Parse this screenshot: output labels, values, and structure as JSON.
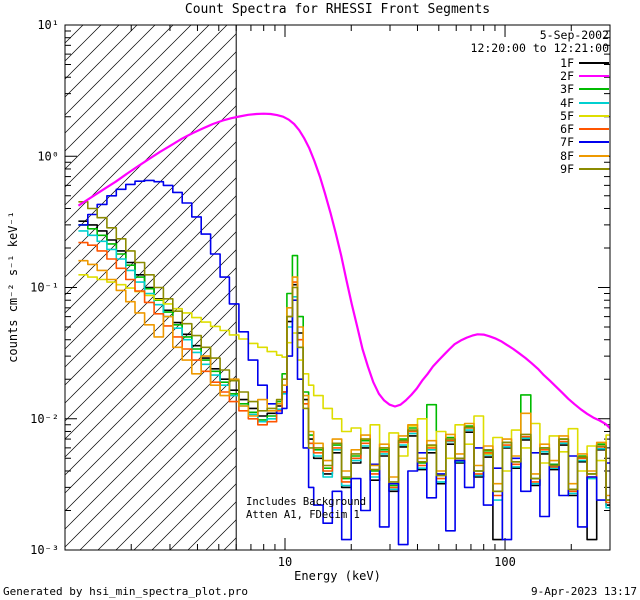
{
  "annotations": {
    "date": "5-Sep-2002",
    "time_range": "12:20:00 to 12:21:00",
    "note_line1": "Includes Background",
    "note_line2": "Atten A1, FDecim 1",
    "generated_by": "Generated by hsi_min_spectra_plot.pro",
    "generated_on": "9-Apr-2023 13:17"
  },
  "chart_data": {
    "type": "line",
    "title": "Count Spectra for RHESSI Front Segments",
    "xlabel": "Energy (keV)",
    "ylabel": "counts cm⁻² s⁻¹ keV⁻¹",
    "xscale": "log",
    "yscale": "log",
    "xlim": [
      1,
      300
    ],
    "ylim": [
      0.001,
      10
    ],
    "attenuator_kev": 6,
    "hatched_region_kev": [
      1,
      6
    ],
    "x_ticks": [
      {
        "v": 10,
        "label": "10"
      },
      {
        "v": 100,
        "label": "100"
      }
    ],
    "y_ticks": [
      {
        "v": 10,
        "label": "10¹"
      },
      {
        "v": 1,
        "label": "10⁰"
      },
      {
        "v": 0.1,
        "label": "10⁻¹"
      },
      {
        "v": 0.01,
        "label": "10⁻²"
      },
      {
        "v": 0.001,
        "label": "10⁻³"
      }
    ],
    "energies_kev": [
      1.15,
      1.27,
      1.4,
      1.55,
      1.71,
      1.89,
      2.08,
      2.3,
      2.54,
      2.8,
      3.09,
      3.41,
      3.77,
      4.16,
      4.59,
      5.07,
      5.59,
      6.17,
      6.81,
      7.52,
      8.3,
      9.16,
      9.7,
      10.2,
      10.8,
      11.4,
      12.1,
      12.8,
      13.5,
      14.9,
      16.4,
      18.1,
      20.0,
      22.1,
      24.4,
      26.9,
      29.7,
      32.8,
      36.2,
      40.0,
      44.1,
      48.7,
      53.8,
      59.3,
      65.5,
      72.3,
      79.8,
      88.1,
      97.2,
      107,
      118,
      131,
      144,
      159,
      176,
      194,
      214,
      236,
      261,
      288,
      318,
      351
    ],
    "series": [
      {
        "name": "1F",
        "color": "#000000",
        "values": [
          0.32,
          0.3,
          0.27,
          0.23,
          0.19,
          0.155,
          0.125,
          0.1,
          0.082,
          0.067,
          0.054,
          0.044,
          0.036,
          0.029,
          0.024,
          0.02,
          0.0165,
          0.014,
          0.012,
          0.0105,
          0.011,
          0.0125,
          0.016,
          0.055,
          0.105,
          0.045,
          0.014,
          0.007,
          0.005,
          0.0038,
          0.0055,
          0.003,
          0.0046,
          0.006,
          0.0034,
          0.0052,
          0.0028,
          0.0061,
          0.0074,
          0.0041,
          0.0055,
          0.0032,
          0.0064,
          0.0046,
          0.0079,
          0.0036,
          0.0051,
          0.0012,
          0.006,
          0.0042,
          0.0069,
          0.0031,
          0.0054,
          0.0041,
          0.0063,
          0.0026,
          0.0047,
          0.0012,
          0.0058,
          0.0022,
          0.0039,
          0.0031
        ]
      },
      {
        "name": "2F",
        "color": "#ff00ff",
        "points": [
          [
            1.15,
            0.42
          ],
          [
            1.3,
            0.48
          ],
          [
            1.5,
            0.56
          ],
          [
            1.7,
            0.64
          ],
          [
            1.9,
            0.73
          ],
          [
            2.1,
            0.82
          ],
          [
            2.4,
            0.95
          ],
          [
            2.7,
            1.08
          ],
          [
            3.0,
            1.2
          ],
          [
            3.4,
            1.36
          ],
          [
            3.8,
            1.5
          ],
          [
            4.2,
            1.62
          ],
          [
            4.7,
            1.76
          ],
          [
            5.2,
            1.87
          ],
          [
            5.7,
            1.95
          ],
          [
            6.2,
            2.01
          ],
          [
            6.8,
            2.07
          ],
          [
            7.4,
            2.1
          ],
          [
            8.0,
            2.11
          ],
          [
            8.6,
            2.1
          ],
          [
            9.2,
            2.06
          ],
          [
            9.8,
            2.0
          ],
          [
            10.4,
            1.9
          ],
          [
            11.0,
            1.76
          ],
          [
            11.6,
            1.58
          ],
          [
            12.2,
            1.38
          ],
          [
            12.9,
            1.15
          ],
          [
            13.6,
            0.92
          ],
          [
            14.4,
            0.7
          ],
          [
            15.2,
            0.52
          ],
          [
            16.1,
            0.37
          ],
          [
            17.0,
            0.26
          ],
          [
            18.0,
            0.175
          ],
          [
            19.0,
            0.115
          ],
          [
            20.1,
            0.075
          ],
          [
            21.3,
            0.05
          ],
          [
            22.5,
            0.034
          ],
          [
            23.8,
            0.025
          ],
          [
            25.2,
            0.019
          ],
          [
            26.7,
            0.0155
          ],
          [
            28.2,
            0.0138
          ],
          [
            29.9,
            0.0128
          ],
          [
            31.6,
            0.0124
          ],
          [
            33.5,
            0.0128
          ],
          [
            35.4,
            0.0138
          ],
          [
            37.5,
            0.0152
          ],
          [
            39.7,
            0.017
          ],
          [
            42,
            0.0195
          ],
          [
            44.5,
            0.022
          ],
          [
            47,
            0.025
          ],
          [
            50,
            0.028
          ],
          [
            53,
            0.031
          ],
          [
            56,
            0.034
          ],
          [
            59,
            0.037
          ],
          [
            63,
            0.0395
          ],
          [
            67,
            0.0415
          ],
          [
            71,
            0.043
          ],
          [
            75,
            0.044
          ],
          [
            80,
            0.0438
          ],
          [
            85,
            0.0425
          ],
          [
            90,
            0.041
          ],
          [
            96,
            0.039
          ],
          [
            102,
            0.0365
          ],
          [
            109,
            0.034
          ],
          [
            116,
            0.0315
          ],
          [
            124,
            0.029
          ],
          [
            132,
            0.0265
          ],
          [
            141,
            0.024
          ],
          [
            150,
            0.0215
          ],
          [
            160,
            0.0195
          ],
          [
            171,
            0.0175
          ],
          [
            182,
            0.0158
          ],
          [
            194,
            0.0142
          ],
          [
            207,
            0.0129
          ],
          [
            221,
            0.0118
          ],
          [
            236,
            0.0109
          ],
          [
            252,
            0.0102
          ],
          [
            269,
            0.0097
          ],
          [
            287,
            0.0091
          ],
          [
            306,
            0.0082
          ]
        ]
      },
      {
        "name": "3F",
        "color": "#00bb00",
        "values": [
          0.3,
          0.28,
          0.25,
          0.215,
          0.18,
          0.148,
          0.12,
          0.098,
          0.08,
          0.065,
          0.052,
          0.042,
          0.034,
          0.028,
          0.023,
          0.019,
          0.0155,
          0.013,
          0.0112,
          0.0098,
          0.0105,
          0.0135,
          0.022,
          0.09,
          0.175,
          0.06,
          0.016,
          0.0075,
          0.0058,
          0.0042,
          0.0063,
          0.0035,
          0.0052,
          0.0068,
          0.004,
          0.0058,
          0.0031,
          0.007,
          0.0085,
          0.0046,
          0.0128,
          0.0037,
          0.0072,
          0.005,
          0.0088,
          0.004,
          0.0057,
          0.0028,
          0.0066,
          0.0047,
          0.0152,
          0.0035,
          0.006,
          0.0045,
          0.007,
          0.0029,
          0.0052,
          0.0038,
          0.0064,
          0.0024,
          0.0043,
          0.0034
        ]
      },
      {
        "name": "4F",
        "color": "#00d0d0",
        "values": [
          0.27,
          0.25,
          0.225,
          0.195,
          0.165,
          0.135,
          0.11,
          0.09,
          0.074,
          0.06,
          0.049,
          0.04,
          0.032,
          0.026,
          0.0215,
          0.018,
          0.015,
          0.0125,
          0.0108,
          0.0095,
          0.01,
          0.0118,
          0.0155,
          0.05,
          0.085,
          0.035,
          0.013,
          0.0065,
          0.0052,
          0.0036,
          0.0058,
          0.0031,
          0.0048,
          0.0062,
          0.0036,
          0.0054,
          0.0029,
          0.0063,
          0.0077,
          0.0042,
          0.0058,
          0.0033,
          0.0067,
          0.0047,
          0.0082,
          0.0037,
          0.0053,
          0.0024,
          0.0061,
          0.0043,
          0.0071,
          0.0032,
          0.0056,
          0.0042,
          0.0065,
          0.0027,
          0.0048,
          0.0035,
          0.0059,
          0.0021,
          0.004,
          0.003
        ]
      },
      {
        "name": "5F",
        "color": "#dede00",
        "values": [
          0.125,
          0.12,
          0.115,
          0.11,
          0.105,
          0.099,
          0.093,
          0.087,
          0.081,
          0.075,
          0.069,
          0.064,
          0.059,
          0.0545,
          0.0505,
          0.047,
          0.0435,
          0.0405,
          0.0375,
          0.035,
          0.0325,
          0.0305,
          0.0295,
          0.038,
          0.045,
          0.028,
          0.022,
          0.018,
          0.015,
          0.012,
          0.01,
          0.008,
          0.0085,
          0.007,
          0.009,
          0.006,
          0.0078,
          0.0052,
          0.0088,
          0.01,
          0.0062,
          0.008,
          0.005,
          0.009,
          0.0064,
          0.0105,
          0.0054,
          0.0072,
          0.004,
          0.0082,
          0.006,
          0.0092,
          0.0046,
          0.0074,
          0.0056,
          0.0084,
          0.004,
          0.0062,
          0.0048,
          0.0075,
          0.0034,
          0.0055
        ]
      },
      {
        "name": "6F",
        "color": "#ff5500",
        "values": [
          0.22,
          0.21,
          0.19,
          0.165,
          0.14,
          0.115,
          0.094,
          0.077,
          0.063,
          0.051,
          0.042,
          0.034,
          0.028,
          0.023,
          0.019,
          0.016,
          0.0135,
          0.0115,
          0.01,
          0.009,
          0.0095,
          0.0115,
          0.016,
          0.06,
          0.11,
          0.04,
          0.013,
          0.0065,
          0.0055,
          0.004,
          0.006,
          0.0033,
          0.005,
          0.0065,
          0.0038,
          0.0056,
          0.003,
          0.0066,
          0.008,
          0.0044,
          0.006,
          0.0035,
          0.0068,
          0.0048,
          0.0085,
          0.0038,
          0.0055,
          0.0026,
          0.0063,
          0.0045,
          0.0073,
          0.0033,
          0.0058,
          0.0043,
          0.0067,
          0.0028,
          0.005,
          0.0036,
          0.0061,
          0.0023,
          0.0042,
          0.0032
        ]
      },
      {
        "name": "7F",
        "color": "#0000ee",
        "values": [
          0.3,
          0.36,
          0.43,
          0.5,
          0.56,
          0.61,
          0.645,
          0.655,
          0.64,
          0.6,
          0.53,
          0.44,
          0.345,
          0.255,
          0.18,
          0.12,
          0.075,
          0.046,
          0.028,
          0.018,
          0.013,
          0.011,
          0.012,
          0.03,
          0.08,
          0.02,
          0.006,
          0.003,
          0.0022,
          0.0016,
          0.0028,
          0.0012,
          0.0035,
          0.002,
          0.0045,
          0.0015,
          0.0032,
          0.0011,
          0.004,
          0.0055,
          0.0025,
          0.0038,
          0.0014,
          0.0048,
          0.003,
          0.006,
          0.0022,
          0.0042,
          0.0012,
          0.005,
          0.0028,
          0.0055,
          0.0018,
          0.0044,
          0.0026,
          0.0052,
          0.0015,
          0.0036,
          0.0024,
          0.0046,
          0.0013,
          0.003
        ]
      },
      {
        "name": "8F",
        "color": "#ee9900",
        "values": [
          0.16,
          0.15,
          0.135,
          0.115,
          0.095,
          0.078,
          0.064,
          0.052,
          0.042,
          0.06,
          0.035,
          0.028,
          0.022,
          0.03,
          0.018,
          0.015,
          0.02,
          0.0125,
          0.0105,
          0.014,
          0.0115,
          0.013,
          0.018,
          0.07,
          0.12,
          0.05,
          0.015,
          0.008,
          0.0065,
          0.0048,
          0.007,
          0.004,
          0.0058,
          0.0075,
          0.0044,
          0.0064,
          0.0036,
          0.0074,
          0.009,
          0.005,
          0.0068,
          0.004,
          0.0076,
          0.0054,
          0.0092,
          0.0044,
          0.0062,
          0.0032,
          0.007,
          0.0052,
          0.011,
          0.0038,
          0.0064,
          0.0048,
          0.0074,
          0.0032,
          0.0054,
          0.004,
          0.0066,
          0.0026,
          0.0046,
          0.0036
        ]
      },
      {
        "name": "9F",
        "color": "#8b8b00",
        "values": [
          0.45,
          0.4,
          0.34,
          0.285,
          0.235,
          0.19,
          0.155,
          0.125,
          0.1,
          0.082,
          0.066,
          0.053,
          0.043,
          0.035,
          0.029,
          0.0235,
          0.0195,
          0.016,
          0.0135,
          0.0115,
          0.012,
          0.014,
          0.02,
          0.06,
          0.1,
          0.035,
          0.012,
          0.006,
          0.006,
          0.0044,
          0.0065,
          0.0036,
          0.0054,
          0.007,
          0.0041,
          0.006,
          0.0033,
          0.0068,
          0.0082,
          0.0047,
          0.0063,
          0.0037,
          0.007,
          0.005,
          0.0086,
          0.004,
          0.0058,
          0.0028,
          0.0066,
          0.0047,
          0.0076,
          0.0035,
          0.006,
          0.0044,
          0.007,
          0.0029,
          0.0051,
          0.0038,
          0.0062,
          0.0024,
          0.0044,
          0.0033
        ]
      }
    ]
  }
}
